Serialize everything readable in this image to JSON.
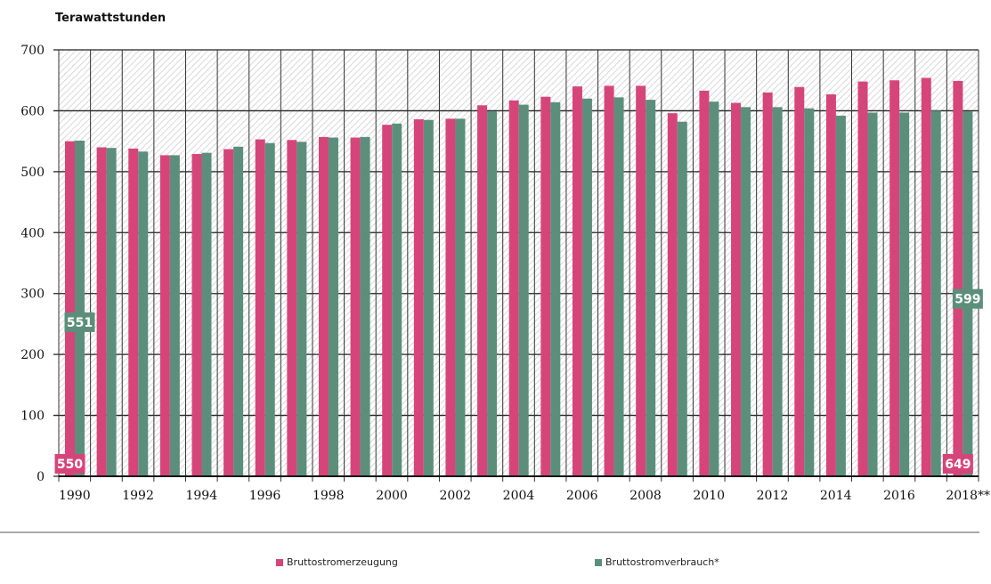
{
  "chart_data": {
    "type": "bar",
    "ylabel": "Terawattstunden",
    "ylim": [
      0,
      700
    ],
    "yticks": [
      0,
      100,
      200,
      300,
      400,
      500,
      600,
      700
    ],
    "grid": true,
    "legend_position": "bottom",
    "categories": [
      "1990",
      "1991",
      "1992",
      "1993",
      "1994",
      "1995",
      "1996",
      "1997",
      "1998",
      "1999",
      "2000",
      "2001",
      "2002",
      "2003",
      "2004",
      "2005",
      "2006",
      "2007",
      "2008",
      "2009",
      "2010",
      "2011",
      "2012",
      "2013",
      "2014",
      "2015",
      "2016",
      "2017",
      "2018**"
    ],
    "xtick_labels": [
      "1990",
      "",
      "1992",
      "",
      "1994",
      "",
      "1996",
      "",
      "1998",
      "",
      "2000",
      "",
      "2002",
      "",
      "2004",
      "",
      "2006",
      "",
      "2008",
      "",
      "2010",
      "",
      "2012",
      "",
      "2014",
      "",
      "2016",
      "",
      "2018**"
    ],
    "series": [
      {
        "name": "Bruttostromerzeugung",
        "color": "#d6457a",
        "values": [
          550,
          540,
          538,
          527,
          529,
          537,
          553,
          552,
          557,
          556,
          577,
          586,
          587,
          609,
          617,
          623,
          640,
          641,
          641,
          596,
          633,
          613,
          630,
          639,
          627,
          648,
          650,
          654,
          649
        ]
      },
      {
        "name": "Bruttostromverbrauch*",
        "color": "#5b8f7c",
        "values": [
          551,
          539,
          533,
          527,
          531,
          541,
          547,
          549,
          556,
          557,
          579,
          585,
          587,
          599,
          610,
          614,
          620,
          622,
          618,
          582,
          615,
          606,
          606,
          604,
          592,
          597,
          597,
          600,
          599
        ]
      }
    ],
    "data_labels": [
      {
        "series": 0,
        "index": 0,
        "text": "550"
      },
      {
        "series": 1,
        "index": 0,
        "text": "551"
      },
      {
        "series": 1,
        "index": 28,
        "text": "599"
      },
      {
        "series": 0,
        "index": 28,
        "text": "649"
      }
    ]
  }
}
